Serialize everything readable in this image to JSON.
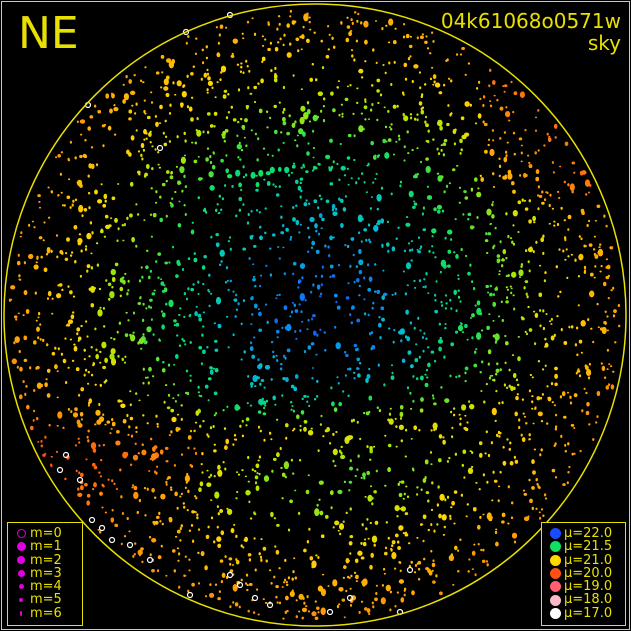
{
  "header": {
    "direction_label": "NE",
    "title": "04k61068o0571w",
    "subtitle": "sky"
  },
  "colors": {
    "frame": "#e8e000",
    "background": "#000000",
    "magnitude_symbol": "#e000e0"
  },
  "magnitude_legend": [
    {
      "label": "m=0",
      "symbol": "open-circle"
    },
    {
      "label": "m=1",
      "symbol": "dot"
    },
    {
      "label": "m=2",
      "symbol": "dot"
    },
    {
      "label": "m=3",
      "symbol": "dot"
    },
    {
      "label": "m=4",
      "symbol": "dot"
    },
    {
      "label": "m=5",
      "symbol": "dot"
    },
    {
      "label": "m=6",
      "symbol": "dot"
    }
  ],
  "brightness_legend": [
    {
      "label": "μ=22.0",
      "color": "#1a4cff"
    },
    {
      "label": "μ=21.5",
      "color": "#10e060"
    },
    {
      "label": "μ=21.0",
      "color": "#ffd800"
    },
    {
      "label": "μ=20.0",
      "color": "#ff5010"
    },
    {
      "label": "μ=19.0",
      "color": "#ff6070"
    },
    {
      "label": "μ=18.0",
      "color": "#ffb8c8"
    },
    {
      "label": "μ=17.0",
      "color": "#ffffff"
    }
  ],
  "chart_data": {
    "type": "scatter",
    "title": "04k61068o0571w",
    "subtitle": "sky",
    "projection": "all-sky circle",
    "encoding": {
      "size": "star magnitude m",
      "color": "sky brightness μ"
    },
    "color_scale": [
      22.0,
      21.5,
      21.0,
      20.0,
      19.0,
      18.0,
      17.0
    ],
    "legend_placement": [
      "bottom-left",
      "bottom-right"
    ]
  }
}
